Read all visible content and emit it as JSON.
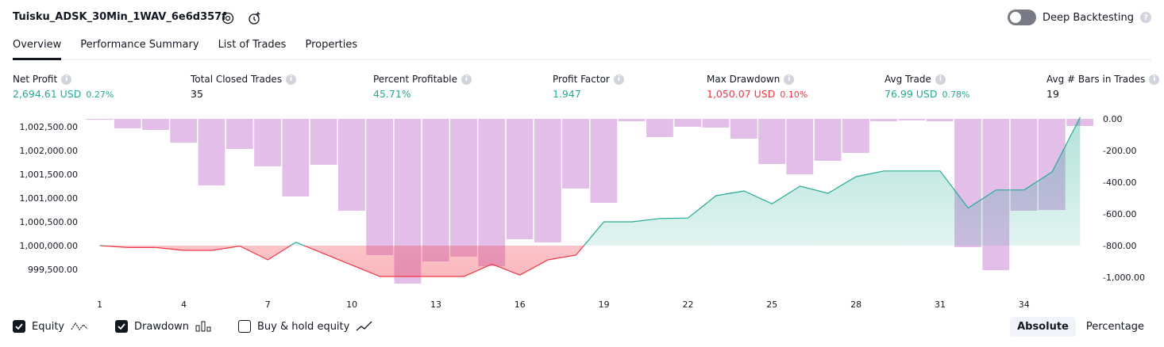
{
  "header": {
    "title": "Tuisku_ADSK_30Min_1WAV_6e6d357f",
    "deep_backtesting_label": "Deep Backtesting",
    "deep_backtesting_on": false
  },
  "tabs": [
    {
      "label": "Overview",
      "active": true
    },
    {
      "label": "Performance Summary",
      "active": false
    },
    {
      "label": "List of Trades",
      "active": false
    },
    {
      "label": "Properties",
      "active": false
    }
  ],
  "metrics": [
    {
      "label": "Net Profit",
      "value": "2,694.61 USD",
      "pct": "0.27%",
      "tone": "pos"
    },
    {
      "label": "Total Closed Trades",
      "value": "35",
      "pct": "",
      "tone": "plain"
    },
    {
      "label": "Percent Profitable",
      "value": "45.71%",
      "pct": "",
      "tone": "pos"
    },
    {
      "label": "Profit Factor",
      "value": "1.947",
      "pct": "",
      "tone": "pos"
    },
    {
      "label": "Max Drawdown",
      "value": "1,050.07 USD",
      "pct": "0.10%",
      "tone": "neg"
    },
    {
      "label": "Avg Trade",
      "value": "76.99 USD",
      "pct": "0.78%",
      "tone": "pos"
    },
    {
      "label": "Avg # Bars in Trades",
      "value": "19",
      "pct": "",
      "tone": "plain"
    }
  ],
  "chart_data": {
    "type": "line",
    "baseline": 1000000,
    "left_axis": {
      "ticks": [
        "1,002,500.00",
        "1,002,000.00",
        "1,001,500.00",
        "1,001,000.00",
        "1,000,500.00",
        "1,000,000.00",
        "999,500.00"
      ],
      "values": [
        1002500,
        1002000,
        1001500,
        1001000,
        1000500,
        1000000,
        999500
      ]
    },
    "right_axis": {
      "ticks": [
        "0.00",
        "-200.00",
        "-400.00",
        "-600.00",
        "-800.00",
        "-1,000.00"
      ],
      "values": [
        0,
        -200,
        -400,
        -600,
        -800,
        -1000
      ]
    },
    "x_ticks": [
      "1",
      "4",
      "7",
      "10",
      "13",
      "16",
      "19",
      "22",
      "25",
      "28",
      "31",
      "34"
    ],
    "x_tick_values": [
      1,
      4,
      7,
      10,
      13,
      16,
      19,
      22,
      25,
      28,
      31,
      34
    ],
    "series": [
      {
        "name": "Equity",
        "x": [
          1,
          2,
          3,
          4,
          5,
          6,
          7,
          8,
          9,
          10,
          11,
          12,
          13,
          14,
          15,
          16,
          17,
          18,
          19,
          20,
          21,
          22,
          23,
          24,
          25,
          26,
          27,
          28,
          29,
          30,
          31,
          32,
          33,
          34,
          35,
          36
        ],
        "values": [
          1000000,
          999960,
          999960,
          999900,
          999900,
          999990,
          999700,
          1000070,
          999830,
          999590,
          999350,
          999350,
          999350,
          999350,
          999610,
          999380,
          999700,
          999800,
          1000500,
          1000500,
          1000570,
          1000580,
          1001050,
          1001150,
          1000880,
          1001250,
          1001100,
          1001450,
          1001570,
          1001570,
          1001570,
          1000790,
          1001170,
          1001170,
          1001550,
          1002700
        ]
      },
      {
        "name": "Drawdown",
        "x": [
          1,
          2,
          3,
          4,
          5,
          6,
          7,
          8,
          9,
          10,
          11,
          12,
          13,
          14,
          15,
          16,
          17,
          18,
          19,
          20,
          21,
          22,
          23,
          24,
          25,
          26,
          27,
          28,
          29,
          30,
          31,
          32,
          33,
          34,
          35,
          36
        ],
        "values": [
          -5,
          -60,
          -70,
          -150,
          -420,
          -190,
          -300,
          -490,
          -290,
          -580,
          -860,
          -1040,
          -900,
          -870,
          -930,
          -760,
          -780,
          -440,
          -530,
          -15,
          -115,
          -50,
          -55,
          -125,
          -285,
          -350,
          -265,
          -215,
          -15,
          -10,
          -15,
          -810,
          -955,
          -580,
          -575,
          -45
        ]
      }
    ],
    "legend": [
      {
        "label": "Equity",
        "checked": true
      },
      {
        "label": "Drawdown",
        "checked": true
      },
      {
        "label": "Buy & hold equity",
        "checked": false
      }
    ],
    "modes": [
      {
        "label": "Absolute",
        "active": true
      },
      {
        "label": "Percentage",
        "active": false
      }
    ],
    "colors": {
      "equity_up": "#22ab94",
      "equity_down": "#f23645",
      "drawdown": "#ce93d8"
    }
  }
}
